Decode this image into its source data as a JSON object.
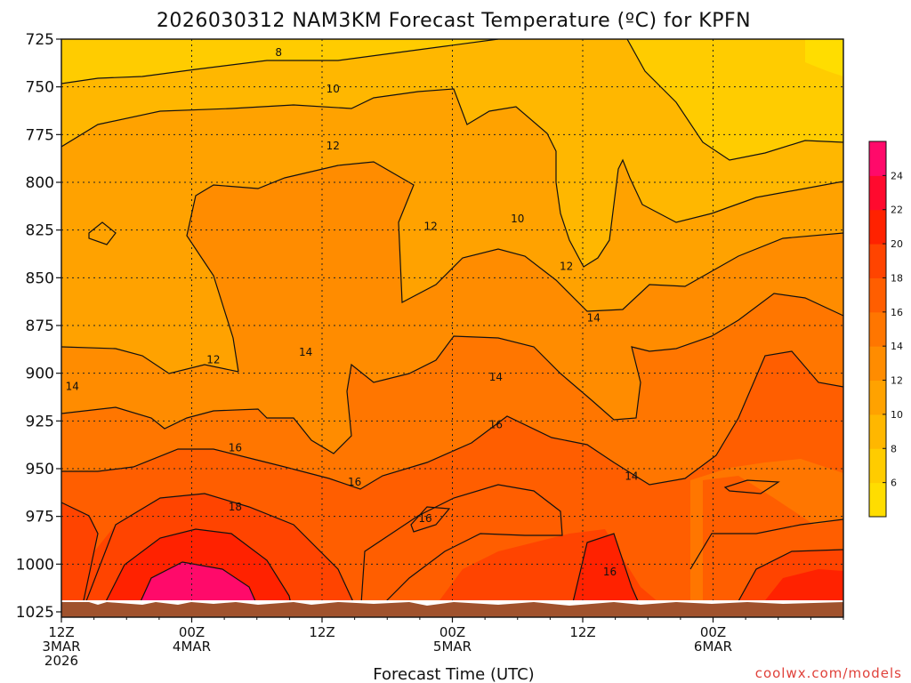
{
  "chart_data": {
    "type": "heatmap",
    "title": "2026030312 NAM3KM Forecast Temperature (ºC) for KPFN",
    "xlabel": "Forecast Time (UTC)",
    "ylabel": "",
    "credit": "coolwx.com/models",
    "y_ticks": [
      "725",
      "750",
      "775",
      "800",
      "825",
      "850",
      "875",
      "900",
      "925",
      "950",
      "975",
      "1000",
      "1025"
    ],
    "x_ticks": [
      {
        "hour": 0,
        "line1": "12Z",
        "line2": "3MAR",
        "line3": "2026"
      },
      {
        "hour": 12,
        "line1": "00Z",
        "line2": "4MAR",
        "line3": ""
      },
      {
        "hour": 24,
        "line1": "12Z",
        "line2": "",
        "line3": ""
      },
      {
        "hour": 36,
        "line1": "00Z",
        "line2": "5MAR",
        "line3": ""
      },
      {
        "hour": 48,
        "line1": "12Z",
        "line2": "",
        "line3": ""
      },
      {
        "hour": 60,
        "line1": "00Z",
        "line2": "6MAR",
        "line3": ""
      }
    ],
    "colorbar": {
      "levels": [
        4,
        6,
        8,
        10,
        12,
        14,
        16,
        18,
        20,
        22,
        24,
        26
      ],
      "labels": [
        "6",
        "8",
        "10",
        "12",
        "14",
        "16",
        "18",
        "20",
        "22",
        "24"
      ],
      "colors": [
        "#ffdd00",
        "#ffcc00",
        "#ffb700",
        "#ffa200",
        "#ff8c00",
        "#ff7600",
        "#ff5e00",
        "#ff4400",
        "#ff2200",
        "#ff0a2e",
        "#ff0a6a"
      ]
    },
    "contour_labels": [
      {
        "text": "8",
        "hour": 20,
        "p": 732
      },
      {
        "text": "10",
        "hour": 25,
        "p": 751
      },
      {
        "text": "12",
        "hour": 25,
        "p": 781
      },
      {
        "text": "10",
        "hour": 42,
        "p": 819
      },
      {
        "text": "12",
        "hour": 34,
        "p": 823
      },
      {
        "text": "12",
        "hour": 46.5,
        "p": 844
      },
      {
        "text": "14",
        "hour": 49,
        "p": 871
      },
      {
        "text": "12",
        "hour": 14,
        "p": 893
      },
      {
        "text": "14",
        "hour": 22.5,
        "p": 889
      },
      {
        "text": "14",
        "hour": 1,
        "p": 907
      },
      {
        "text": "14",
        "hour": 40,
        "p": 902
      },
      {
        "text": "16",
        "hour": 16,
        "p": 939
      },
      {
        "text": "16",
        "hour": 40,
        "p": 927
      },
      {
        "text": "14",
        "hour": 52.5,
        "p": 954
      },
      {
        "text": "16",
        "hour": 27,
        "p": 957
      },
      {
        "text": "18",
        "hour": 16,
        "p": 970
      },
      {
        "text": "16",
        "hour": 33.5,
        "p": 976
      },
      {
        "text": "16",
        "hour": 50.5,
        "p": 1004
      }
    ]
  }
}
